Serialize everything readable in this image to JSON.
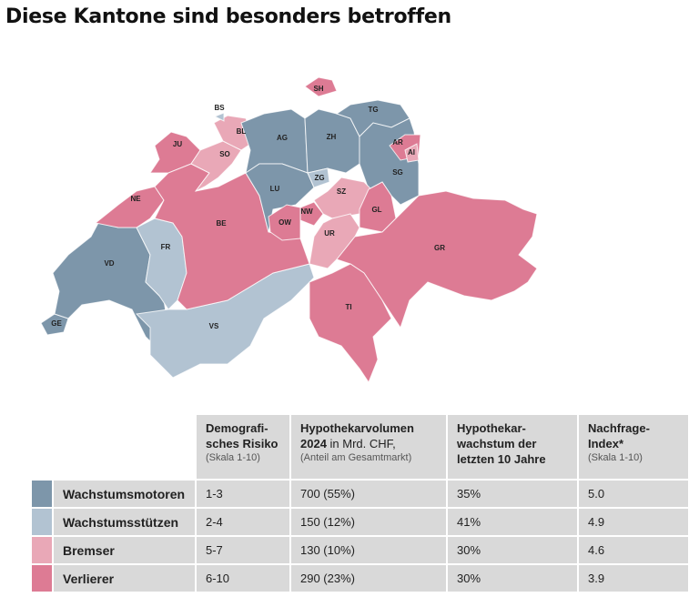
{
  "title": "Diese Kantone sind besonders betroffen",
  "colors": {
    "wachstumsmotoren": "#7d96aa",
    "wachstumsstuetzen": "#b2c3d2",
    "bremser": "#e9a8b7",
    "verlierer": "#dd7b94"
  },
  "cantons": [
    {
      "code": "GE",
      "cat": "wachstumsmotoren"
    },
    {
      "code": "VD",
      "cat": "wachstumsmotoren"
    },
    {
      "code": "FR",
      "cat": "wachstumsstuetzen"
    },
    {
      "code": "VS",
      "cat": "wachstumsstuetzen"
    },
    {
      "code": "NE",
      "cat": "verlierer"
    },
    {
      "code": "JU",
      "cat": "verlierer"
    },
    {
      "code": "BE",
      "cat": "verlierer"
    },
    {
      "code": "SO",
      "cat": "bremser"
    },
    {
      "code": "BL",
      "cat": "bremser"
    },
    {
      "code": "BS",
      "cat": "wachstumsstuetzen"
    },
    {
      "code": "AG",
      "cat": "wachstumsmotoren"
    },
    {
      "code": "LU",
      "cat": "wachstumsmotoren"
    },
    {
      "code": "ZH",
      "cat": "wachstumsmotoren"
    },
    {
      "code": "SH",
      "cat": "verlierer"
    },
    {
      "code": "TG",
      "cat": "wachstumsmotoren"
    },
    {
      "code": "SG",
      "cat": "wachstumsmotoren"
    },
    {
      "code": "AR",
      "cat": "verlierer"
    },
    {
      "code": "AI",
      "cat": "bremser"
    },
    {
      "code": "ZG",
      "cat": "wachstumsstuetzen"
    },
    {
      "code": "SZ",
      "cat": "bremser"
    },
    {
      "code": "GL",
      "cat": "verlierer"
    },
    {
      "code": "NW",
      "cat": "verlierer"
    },
    {
      "code": "OW",
      "cat": "verlierer"
    },
    {
      "code": "UR",
      "cat": "bremser"
    },
    {
      "code": "GR",
      "cat": "verlierer"
    },
    {
      "code": "TI",
      "cat": "verlierer"
    }
  ],
  "table": {
    "headers": [
      {
        "bold": "Demografi-\nsches Risiko",
        "sub": "(Skala 1-10)"
      },
      {
        "bold": "Hypothekarvolumen\n2024",
        "normal": " in Mrd. CHF,",
        "sub": "(Anteil am Gesamtmarkt)"
      },
      {
        "bold": "Hypothekar-\nwachstum der\nletzten 10 Jahre"
      },
      {
        "bold": "Nachfrage-\nIndex*",
        "sub": "(Skala 1-10)"
      }
    ],
    "rows": [
      {
        "key": "wachstumsmotoren",
        "label": "Wachstumsmotoren",
        "risk": "1-3",
        "volume": "700 (55%)",
        "growth": "35%",
        "index": "5.0"
      },
      {
        "key": "wachstumsstuetzen",
        "label": "Wachstumsstützen",
        "risk": "2-4",
        "volume": "150 (12%)",
        "growth": "41%",
        "index": "4.9"
      },
      {
        "key": "bremser",
        "label": "Bremser",
        "risk": "5-7",
        "volume": "130 (10%)",
        "growth": "30%",
        "index": "4.6"
      },
      {
        "key": "verlierer",
        "label": "Verlierer",
        "risk": "6-10",
        "volume": "290 (23%)",
        "growth": "30%",
        "index": "3.9"
      }
    ]
  }
}
